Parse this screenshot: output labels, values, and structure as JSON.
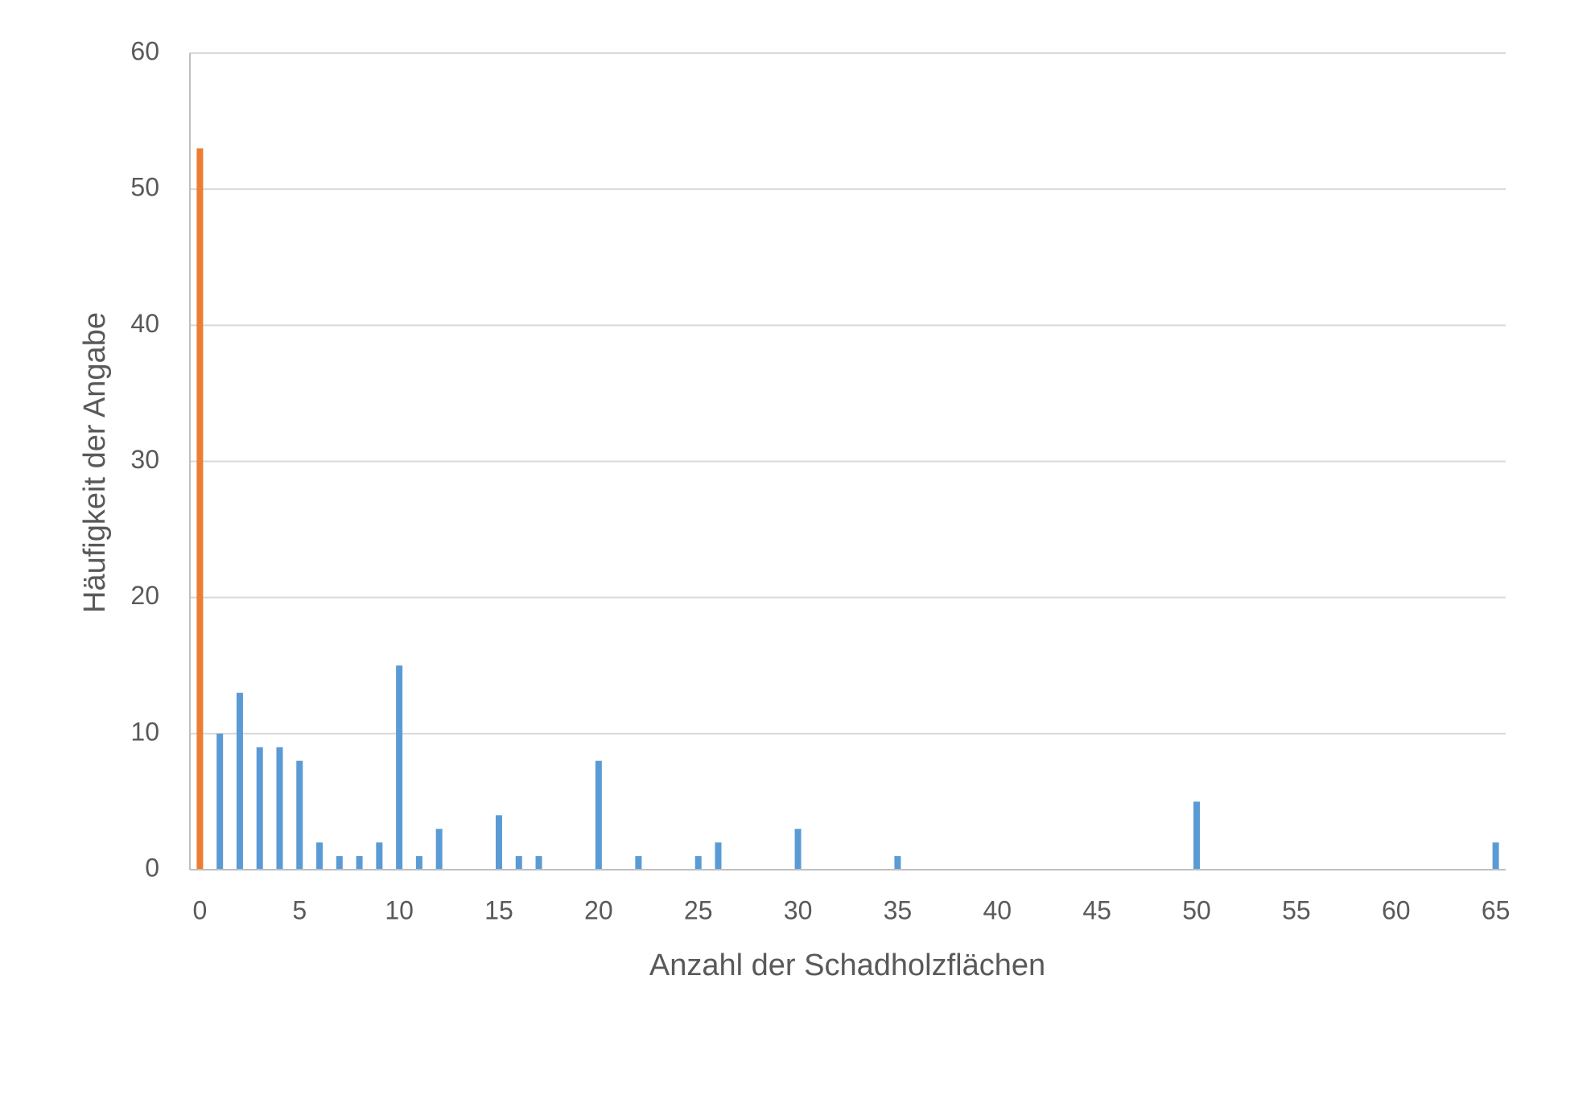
{
  "chart_data": {
    "type": "bar",
    "x_label": "Anzahl der Schadholzflächen",
    "y_label": "Häufigkeit der Angabe",
    "series": [
      {
        "color": "#ed7d31",
        "x": [
          0
        ],
        "values": [
          53
        ]
      },
      {
        "color": "#5b9bd5",
        "x": [
          1,
          2,
          3,
          4,
          5,
          6,
          7,
          8,
          9,
          10,
          11,
          12,
          15,
          16,
          17,
          20,
          22,
          25,
          26,
          30,
          35,
          50,
          65
        ],
        "values": [
          10,
          13,
          9,
          9,
          8,
          2,
          1,
          1,
          2,
          15,
          1,
          3,
          4,
          1,
          1,
          8,
          1,
          1,
          2,
          3,
          1,
          5,
          2
        ]
      }
    ],
    "xlim": [
      -0.5,
      65.5
    ],
    "xticks": [
      0,
      5,
      10,
      15,
      20,
      25,
      30,
      35,
      40,
      45,
      50,
      55,
      60,
      65
    ],
    "ylim": [
      0,
      60
    ],
    "yticks": [
      0,
      10,
      20,
      30,
      40,
      50,
      60
    ],
    "grid": true
  }
}
